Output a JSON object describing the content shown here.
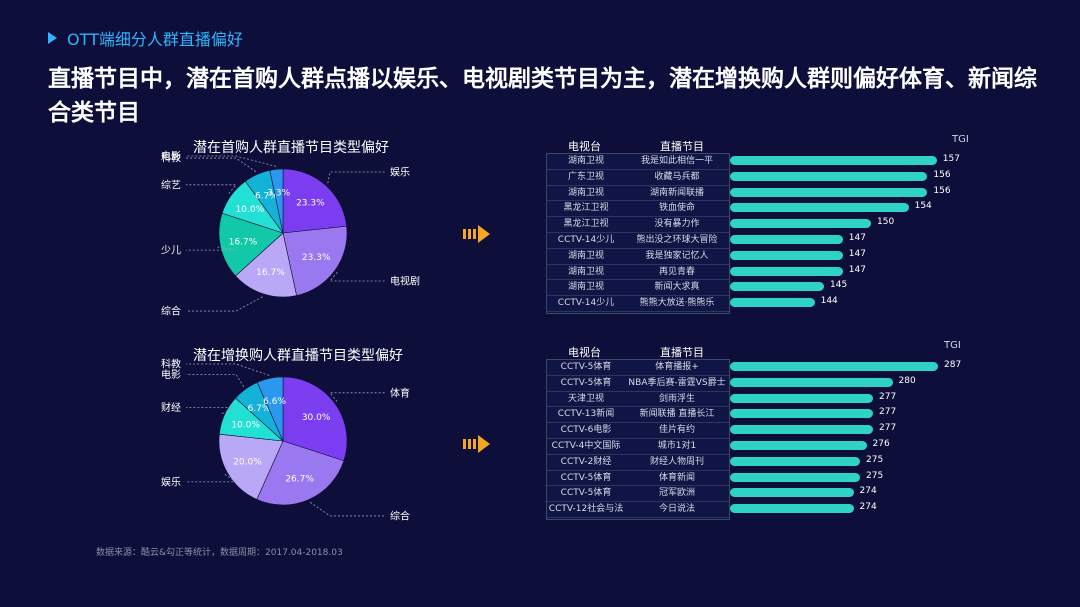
{
  "header": {
    "label": "OTT端细分人群直播偏好"
  },
  "headline": "直播节目中，潜在首购人群点播以娱乐、电视剧类节目为主，潜在增换购人群则偏好体育、新闻综合类节目",
  "source": "数据来源：酷云&勾正等统计，数据周期：2017.04-2018.03",
  "chart_data": [
    {
      "type": "pie",
      "title": "潜在首购人群直播节目类型偏好",
      "slices": [
        {
          "label": "娱乐",
          "value": 23.3,
          "value_label": "23.3%",
          "color": "#7b3df0"
        },
        {
          "label": "电视剧",
          "value": 23.3,
          "value_label": "23.3%",
          "color": "#9a78f0"
        },
        {
          "label": "综合",
          "value": 16.7,
          "value_label": "16.7%",
          "color": "#b9a8f5"
        },
        {
          "label": "少儿",
          "value": 16.7,
          "value_label": "16.7%",
          "color": "#11c9a8"
        },
        {
          "label": "综艺",
          "value": 10.0,
          "value_label": "10.0%",
          "color": "#22e0d3"
        },
        {
          "label": "科教",
          "value": 6.7,
          "value_label": "6.7%",
          "color": "#15b2d8"
        },
        {
          "label": "电影",
          "value": 3.3,
          "value_label": "3.3%",
          "color": "#2a98ef"
        }
      ]
    },
    {
      "type": "pie",
      "title": "潜在增换购人群直播节目类型偏好",
      "slices": [
        {
          "label": "体育",
          "value": 30.0,
          "value_label": "30.0%",
          "color": "#7b3df0"
        },
        {
          "label": "综合",
          "value": 26.7,
          "value_label": "26.7%",
          "color": "#9a78f0"
        },
        {
          "label": "娱乐",
          "value": 20.0,
          "value_label": "20.0%",
          "color": "#b9a8f5"
        },
        {
          "label": "财经",
          "value": 10.0,
          "value_label": "10.0%",
          "color": "#22e0d3"
        },
        {
          "label": "电影",
          "value": 6.7,
          "value_label": "6.7%",
          "color": "#15b2d8"
        },
        {
          "label": "科教",
          "value": 6.6,
          "value_label": "6.6%",
          "color": "#2a98ef"
        }
      ]
    },
    {
      "type": "bar",
      "orientation": "horizontal",
      "columns": [
        "电视台",
        "直播节目"
      ],
      "value_label": "TGI",
      "rows": [
        {
          "channel": "湖南卫视",
          "program": "我是如此相信一平",
          "tgi": 157
        },
        {
          "channel": "广东卫视",
          "program": "收藏马兵都",
          "tgi": 156
        },
        {
          "channel": "湖南卫视",
          "program": "湖南新闻联播",
          "tgi": 156
        },
        {
          "channel": "黑龙江卫视",
          "program": "铁血使命",
          "tgi": 154
        },
        {
          "channel": "黑龙江卫视",
          "program": "没有暴力作",
          "tgi": 150
        },
        {
          "channel": "CCTV-14少儿",
          "program": "熊出没之环球大冒险",
          "tgi": 147
        },
        {
          "channel": "湖南卫视",
          "program": "我是独家记忆人",
          "tgi": 147
        },
        {
          "channel": "湖南卫视",
          "program": "再见青春",
          "tgi": 147
        },
        {
          "channel": "湖南卫视",
          "program": "新闻大求真",
          "tgi": 145
        },
        {
          "channel": "CCTV-14少儿",
          "program": "熊熊大放送·熊熊乐",
          "tgi": 144
        }
      ]
    },
    {
      "type": "bar",
      "orientation": "horizontal",
      "columns": [
        "电视台",
        "直播节目"
      ],
      "value_label": "TGI",
      "rows": [
        {
          "channel": "CCTV-5体育",
          "program": "体育播报+",
          "tgi": 287
        },
        {
          "channel": "CCTV-5体育",
          "program": "NBA季后赛-雷霆VS爵士",
          "tgi": 280
        },
        {
          "channel": "天津卫视",
          "program": "剑雨浮生",
          "tgi": 277
        },
        {
          "channel": "CCTV-13新闻",
          "program": "新闻联播 直播长江",
          "tgi": 277
        },
        {
          "channel": "CCTV-6电影",
          "program": "佳片有约",
          "tgi": 277
        },
        {
          "channel": "CCTV-4中文国际",
          "program": "城市1对1",
          "tgi": 276
        },
        {
          "channel": "CCTV-2财经",
          "program": "财经人物周刊",
          "tgi": 275
        },
        {
          "channel": "CCTV-5体育",
          "program": "体育新闻",
          "tgi": 275
        },
        {
          "channel": "CCTV-5体育",
          "program": "冠军欧洲",
          "tgi": 274
        },
        {
          "channel": "CCTV-12社会与法",
          "program": "今日说法",
          "tgi": 274
        }
      ]
    }
  ]
}
